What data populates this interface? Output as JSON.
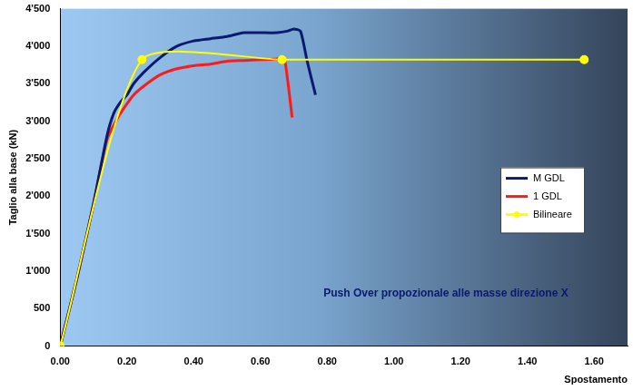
{
  "chart_data": {
    "type": "line",
    "x_label": "Spostamento",
    "y_label": "Taglio alla base (kN)",
    "annotations": [
      "Push Over propozionale alle masse direzione X"
    ],
    "xlim": [
      0,
      1.7
    ],
    "xticks": [
      {
        "value": 0,
        "label": "0.00"
      },
      {
        "value": 0.2,
        "label": "0.20"
      },
      {
        "value": 0.4,
        "label": "0.40"
      },
      {
        "value": 0.6,
        "label": "0.60"
      },
      {
        "value": 0.8,
        "label": "0.80"
      },
      {
        "value": 1,
        "label": "1.00"
      },
      {
        "value": 1.2,
        "label": "1.20"
      },
      {
        "value": 1.4,
        "label": "1.40"
      },
      {
        "value": 1.6,
        "label": "1.60"
      }
    ],
    "ylim": [
      0,
      4500
    ],
    "yticks": [
      0,
      500,
      {
        "value": 1000,
        "label": "1'000"
      },
      {
        "value": 1500,
        "label": "1'500"
      },
      {
        "value": 2000,
        "label": "2'000"
      },
      {
        "value": 2500,
        "label": "2'500"
      },
      {
        "value": 3000,
        "label": "3'000"
      },
      {
        "value": 3500,
        "label": "3'500"
      },
      {
        "value": 4000,
        "label": "4'000"
      },
      {
        "value": 4500,
        "label": "4'500"
      }
    ],
    "grid": false,
    "legend": "right",
    "series": [
      {
        "name": "M GDL",
        "color": "#0a1a6e",
        "marker": "none",
        "line_style": "solid",
        "x": [
          0,
          0.05,
          0.1,
          0.14,
          0.16,
          0.18,
          0.2,
          0.22,
          0.25,
          0.3,
          0.35,
          0.4,
          0.45,
          0.5,
          0.55,
          0.6,
          0.65,
          0.68,
          0.7,
          0.72,
          0.74,
          0.765
        ],
        "values": [
          0,
          900,
          1900,
          2800,
          3100,
          3250,
          3350,
          3500,
          3650,
          3850,
          4000,
          4070,
          4100,
          4130,
          4180,
          4180,
          4180,
          4200,
          4230,
          4200,
          3800,
          3350
        ]
      },
      {
        "name": "1 GDL",
        "color": "#ff1a1a",
        "marker": "none",
        "line_style": "solid",
        "x": [
          0,
          0.05,
          0.1,
          0.14,
          0.18,
          0.22,
          0.26,
          0.3,
          0.35,
          0.4,
          0.45,
          0.5,
          0.55,
          0.6,
          0.65,
          0.67,
          0.68,
          0.695
        ],
        "values": [
          0,
          900,
          1900,
          2750,
          3100,
          3350,
          3500,
          3620,
          3700,
          3740,
          3760,
          3800,
          3810,
          3820,
          3830,
          3860,
          3600,
          3050
        ]
      },
      {
        "name": "Bilineare",
        "color": "#ffff00",
        "marker": "circle",
        "line_style": "solid",
        "x": [
          0,
          0.245,
          0.665,
          1.57
        ],
        "values": [
          0,
          3820,
          3820,
          3820
        ]
      }
    ]
  }
}
